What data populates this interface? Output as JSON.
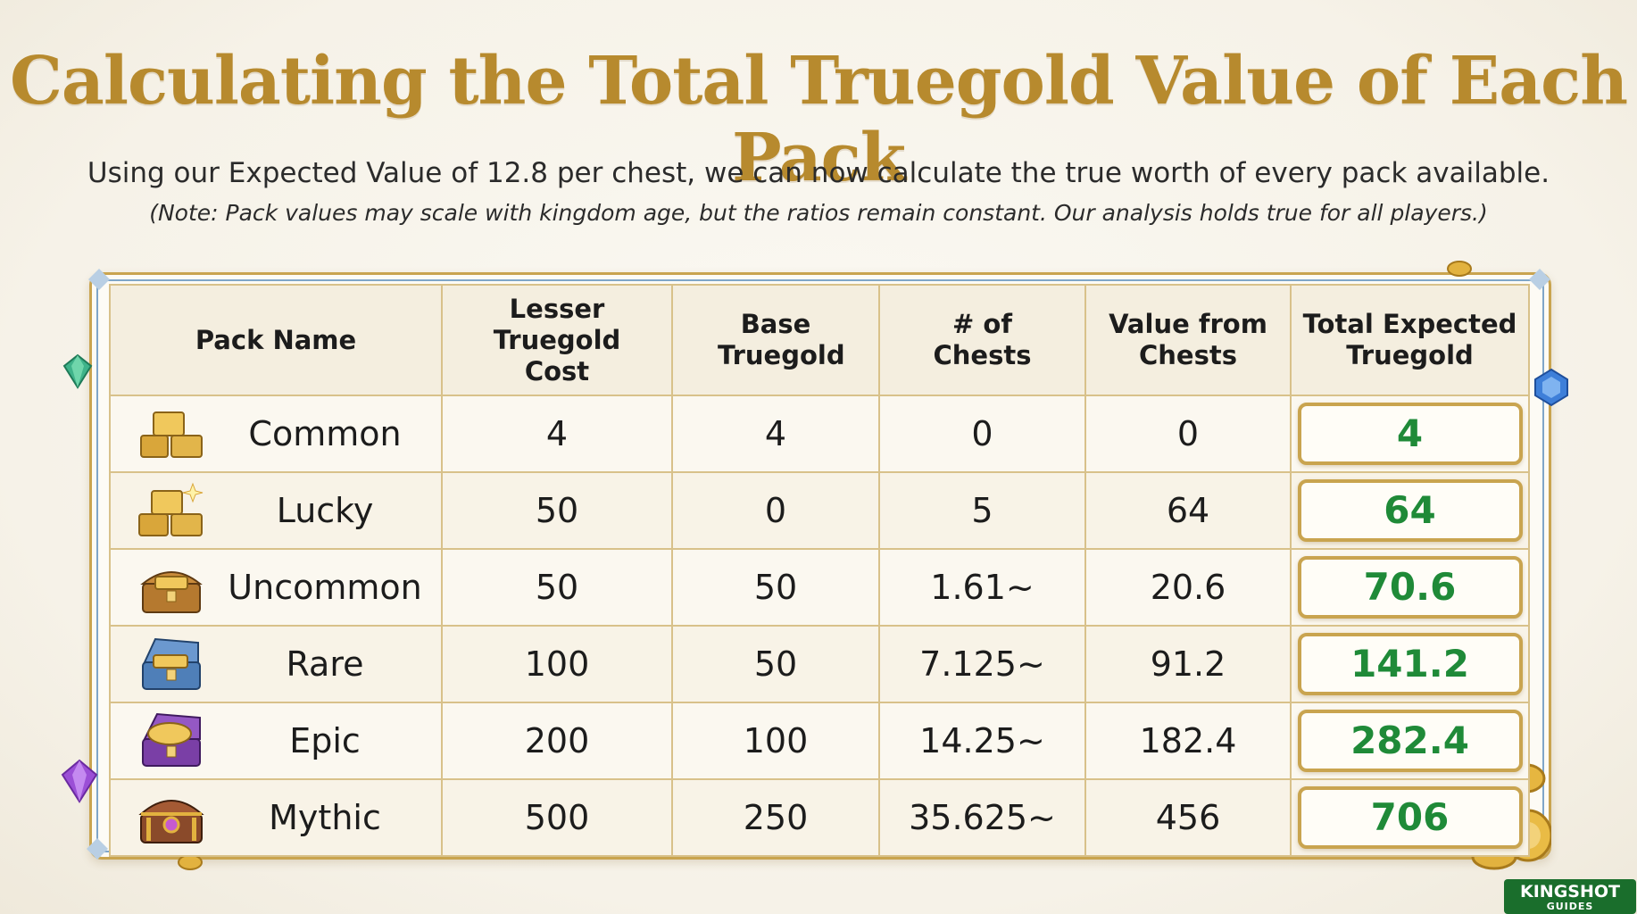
{
  "title": "Calculating the Total Truegold Value of Each Pack",
  "subtitle": "Using our Expected Value of 12.8 per chest, we can now calculate the true worth of every pack available.",
  "note": "(Note: Pack values may scale with kingdom age, but the ratios remain constant. Our analysis holds true for all players.)",
  "table": {
    "headers": [
      "Pack Name",
      "Lesser Truegold Cost",
      "Base Truegold",
      "# of Chests",
      "Value from Chests",
      "Total Expected Truegold"
    ],
    "rows": [
      {
        "name": "Common",
        "icon": "gold-bars-icon",
        "cost": "4",
        "base": "4",
        "chests": "0",
        "value": "0",
        "total": "4"
      },
      {
        "name": "Lucky",
        "icon": "sparkling-gold-bars-icon",
        "cost": "50",
        "base": "0",
        "chests": "5",
        "value": "64",
        "total": "64"
      },
      {
        "name": "Uncommon",
        "icon": "bronze-chest-icon",
        "cost": "50",
        "base": "50",
        "chests": "1.61~",
        "value": "20.6",
        "total": "70.6"
      },
      {
        "name": "Rare",
        "icon": "blue-chest-icon",
        "cost": "100",
        "base": "50",
        "chests": "7.125~",
        "value": "91.2",
        "total": "141.2"
      },
      {
        "name": "Epic",
        "icon": "purple-chest-icon",
        "cost": "200",
        "base": "100",
        "chests": "14.25~",
        "value": "182.4",
        "total": "282.4"
      },
      {
        "name": "Mythic",
        "icon": "mythic-chest-icon",
        "cost": "500",
        "base": "250",
        "chests": "35.625~",
        "value": "456",
        "total": "706"
      }
    ]
  },
  "logo": {
    "line1": "KINGSHOT",
    "line2": "GUIDES"
  },
  "colors": {
    "title": "#b78a2e",
    "total": "#1f8a38",
    "border": "#c9a44f",
    "accent_blue": "#7fa6c9"
  }
}
